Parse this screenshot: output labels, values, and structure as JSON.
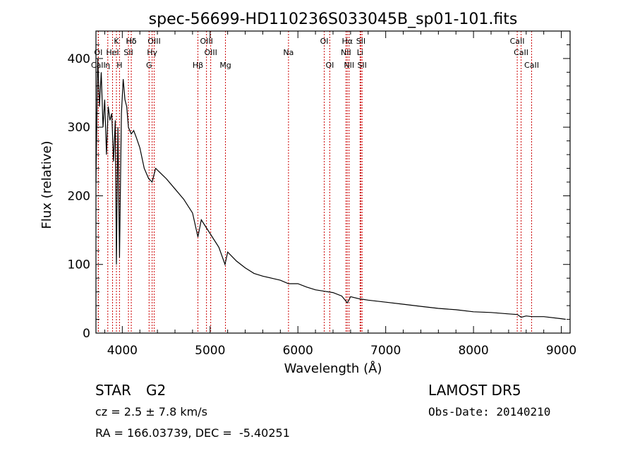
{
  "chart_data": {
    "type": "line",
    "title": "spec-56699-HD110236S033045B_sp01-101.fits",
    "xlabel": "Wavelength (Å)",
    "ylabel": "Flux (relative)",
    "xlim": [
      3700,
      9100
    ],
    "ylim": [
      0,
      440
    ],
    "xticks": [
      4000,
      5000,
      6000,
      7000,
      8000,
      9000
    ],
    "xtick_labels": [
      "4000",
      "5000",
      "6000",
      "7000",
      "8000",
      "9000"
    ],
    "yticks": [
      0,
      100,
      200,
      300,
      400
    ],
    "ytick_labels": [
      "0",
      "100",
      "200",
      "300",
      "400"
    ],
    "grid": false,
    "line_color": "#000000",
    "marker_color": "#cc0000",
    "series": [
      {
        "x": [
          3700,
          3720,
          3740,
          3760,
          3780,
          3800,
          3820,
          3840,
          3860,
          3880,
          3900,
          3920,
          3933,
          3950,
          3968,
          3990,
          4010,
          4030,
          4050,
          4070,
          4102,
          4130,
          4160,
          4200,
          4250,
          4300,
          4340,
          4380,
          4420,
          4460,
          4500,
          4600,
          4700,
          4800,
          4861,
          4900,
          5000,
          5100,
          5170,
          5200,
          5300,
          5400,
          5500,
          5600,
          5700,
          5800,
          5893,
          6000,
          6100,
          6200,
          6300,
          6400,
          6500,
          6563,
          6600,
          6700,
          6800,
          7000,
          7200,
          7400,
          7600,
          7800,
          8000,
          8200,
          8400,
          8500,
          8542,
          8600,
          8662,
          8800,
          9000,
          9050
        ],
        "y": [
          220,
          400,
          330,
          380,
          300,
          340,
          260,
          330,
          310,
          320,
          250,
          310,
          100,
          300,
          110,
          320,
          370,
          340,
          330,
          300,
          290,
          295,
          285,
          270,
          240,
          225,
          220,
          240,
          235,
          230,
          225,
          210,
          195,
          175,
          140,
          165,
          145,
          125,
          100,
          118,
          105,
          95,
          87,
          83,
          80,
          77,
          72,
          72,
          67,
          63,
          61,
          59,
          54,
          44,
          53,
          50,
          48,
          45,
          42,
          39,
          36,
          34,
          31,
          30,
          28,
          27,
          23,
          25,
          24,
          24,
          21,
          20
        ]
      }
    ],
    "lines": [
      {
        "name": "Hδ",
        "x": 4102,
        "row": 0
      },
      {
        "name": "K",
        "x": 3933,
        "row": 0
      },
      {
        "name": "Hδ",
        "x": 4102,
        "row": 0
      },
      {
        "name": "OIII",
        "x": 4363,
        "row": 0
      },
      {
        "name": "OIII",
        "x": 4959,
        "row": 0
      },
      {
        "name": "OI",
        "x": 6300,
        "row": 0
      },
      {
        "name": "Hα",
        "x": 6563,
        "row": 0
      },
      {
        "name": "SII",
        "x": 6717,
        "row": 0
      },
      {
        "name": "CaII",
        "x": 8498,
        "row": 0
      },
      {
        "name": "OI",
        "x": 3727,
        "row": 1
      },
      {
        "name": "HeI",
        "x": 3889,
        "row": 1
      },
      {
        "name": "SII",
        "x": 4070,
        "row": 1
      },
      {
        "name": "Hγ",
        "x": 4340,
        "row": 1
      },
      {
        "name": "OIII",
        "x": 5007,
        "row": 1
      },
      {
        "name": "Na",
        "x": 5893,
        "row": 1
      },
      {
        "name": "NII",
        "x": 6548,
        "row": 1
      },
      {
        "name": "Li",
        "x": 6708,
        "row": 1
      },
      {
        "name": "CaII",
        "x": 8542,
        "row": 1
      },
      {
        "name": "CaII",
        "x": 3727,
        "row": 2
      },
      {
        "name": "η",
        "x": 3835,
        "row": 2
      },
      {
        "name": "H",
        "x": 3968,
        "row": 2
      },
      {
        "name": "G",
        "x": 4305,
        "row": 2
      },
      {
        "name": "Hβ",
        "x": 4861,
        "row": 2
      },
      {
        "name": "Mg",
        "x": 5175,
        "row": 2
      },
      {
        "name": "OI",
        "x": 6363,
        "row": 2
      },
      {
        "name": "NII",
        "x": 6583,
        "row": 2
      },
      {
        "name": "SII",
        "x": 6731,
        "row": 2
      },
      {
        "name": "CaII",
        "x": 8662,
        "row": 2
      }
    ]
  },
  "info": {
    "object_class": "STAR",
    "subclass": "G2",
    "survey": "LAMOST DR5",
    "velocity": "cz = 2.5 ± 7.8 km/s",
    "obs_date": "Obs-Date: 20140210",
    "coords": "RA = 166.03739, DEC =  -5.40251"
  }
}
